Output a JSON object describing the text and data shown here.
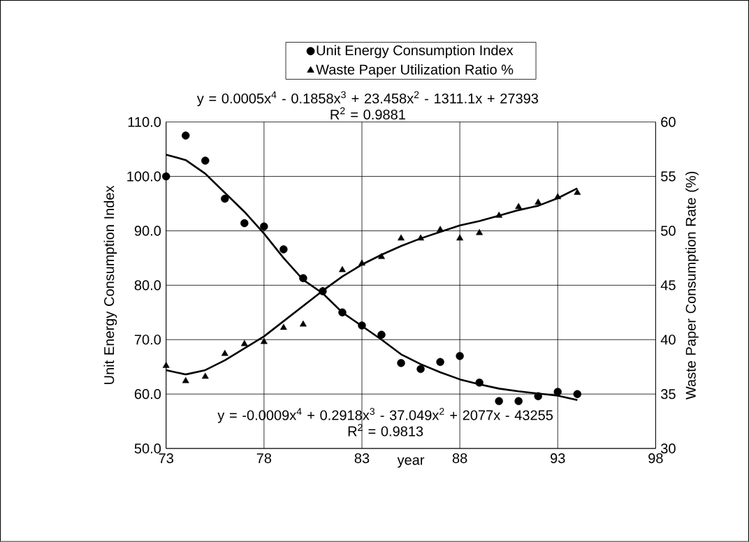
{
  "chart_data": {
    "type": "scatter",
    "xlabel": "year",
    "ylabel": "Unit Energy Consumption Index",
    "y2label": "Waste Paper Consumption Rate (%)",
    "xlim": [
      73,
      98
    ],
    "xticks": [
      73,
      78,
      83,
      88,
      93,
      98
    ],
    "ylim": [
      50,
      110
    ],
    "yticks": [
      {
        "value": 50,
        "label": "50.0"
      },
      {
        "value": 60,
        "label": "60.0"
      },
      {
        "value": 70,
        "label": "70.0"
      },
      {
        "value": 80,
        "label": "80.0"
      },
      {
        "value": 90,
        "label": "90.0"
      },
      {
        "value": 100,
        "label": "100.0"
      },
      {
        "value": 110,
        "label": "110.0"
      }
    ],
    "y2lim": [
      30,
      60
    ],
    "y2ticks": [
      30,
      35,
      40,
      45,
      50,
      55,
      60
    ],
    "grid": true,
    "legend": "top",
    "annotations": [
      "y = 0.0005x$^{4}$ - 0.1858x$^{3}$ + 23.458x$^{2}$ - 1311.1x + 27393",
      "R$^{2}$ = 0.9881",
      "y = -0.0009x$^{4}$ + 0.2918x$^{3}$ - 37.049x$^{2}$ + 2077x - 43255",
      "R$^{2}$ = 0.9813"
    ],
    "series": [
      {
        "name": "Unit Energy Consumption Index",
        "marker": "circle",
        "color": "#000000",
        "x": [
          73,
          74,
          75,
          76,
          77,
          78,
          79,
          80,
          81,
          82,
          83,
          84,
          85,
          86,
          87,
          88,
          89,
          90,
          91,
          92,
          93,
          94
        ],
        "values": [
          100,
          107.5,
          102.9,
          95.9,
          91.4,
          90.8,
          86.6,
          81.3,
          78.9,
          75.0,
          72.6,
          70.9,
          65.7,
          64.6,
          65.9,
          67.0,
          62.1,
          58.7,
          58.7,
          59.6,
          60.4,
          60.0
        ]
      },
      {
        "name": "Waste Paper Utilization Ratio %",
        "marker": "triangle",
        "axis": "y2",
        "color": "#000000",
        "x": [
          73,
          74,
          75,
          76,
          77,
          78,
          79,
          80,
          81,
          82,
          83,
          84,
          85,
          86,
          87,
          88,
          89,
          90,
          91,
          92,
          93,
          94
        ],
        "values": [
          37.6,
          36.2,
          36.6,
          38.7,
          39.6,
          39.8,
          41.1,
          41.4,
          44.5,
          46.4,
          47.0,
          47.6,
          49.3,
          49.3,
          50.1,
          49.3,
          49.8,
          51.4,
          52.2,
          52.6,
          53.1,
          53.5
        ]
      },
      {
        "type": "line",
        "marker": "none",
        "line_style": "solid",
        "color": "#000000",
        "x": [
          73,
          74,
          75,
          76,
          77,
          78,
          79,
          80,
          81,
          82,
          83,
          84,
          85,
          86,
          87,
          88,
          89,
          90,
          91,
          92,
          93,
          94
        ],
        "values": [
          104,
          103,
          100.5,
          97,
          93.5,
          89.5,
          85,
          81,
          78.5,
          75,
          72.5,
          70,
          67.3,
          65.5,
          64,
          62.7,
          61.8,
          61,
          60.5,
          60.1,
          59.7,
          58.9
        ]
      },
      {
        "type": "line",
        "marker": "none",
        "line_style": "solid",
        "axis": "y2",
        "color": "#000000",
        "x": [
          73,
          74,
          75,
          76,
          77,
          78,
          79,
          80,
          81,
          82,
          83,
          84,
          85,
          86,
          87,
          88,
          89,
          90,
          91,
          92,
          93,
          94
        ],
        "values": [
          37.2,
          36.8,
          37.2,
          38.1,
          39.2,
          40.3,
          41.7,
          43.1,
          44.5,
          45.8,
          46.9,
          47.8,
          48.6,
          49.3,
          49.9,
          50.5,
          50.9,
          51.4,
          51.9,
          52.3,
          53,
          53.9
        ]
      }
    ]
  }
}
